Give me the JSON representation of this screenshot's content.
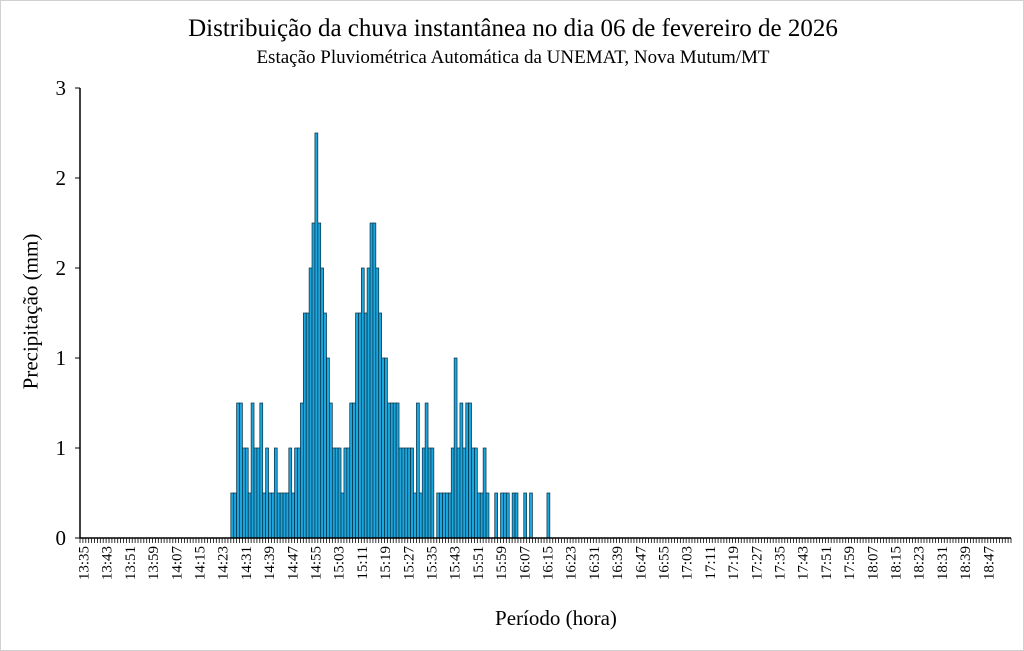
{
  "chart_data": {
    "type": "bar",
    "title": "Distribuição da chuva instantânea no dia 06 de fevereiro de 2026",
    "subtitle": "Estação Pluviométrica Automática da UNEMAT, Nova Mutum/MT",
    "xlabel": "Período (hora)",
    "ylabel": "Precipitação (mm)",
    "ylim": [
      0,
      3
    ],
    "y_ticks": [
      0,
      0.6,
      1.2,
      1.8,
      2.4,
      3.0
    ],
    "y_tick_labels": [
      "0",
      "1",
      "1",
      "2",
      "2",
      "3"
    ],
    "x_start": "13:35",
    "x_interval_minutes": 1,
    "x_tick_labels": [
      "13:35",
      "13:43",
      "13:51",
      "13:59",
      "14:07",
      "14:15",
      "14:23",
      "14:31",
      "14:39",
      "14:47",
      "14:55",
      "15:03",
      "15:11",
      "15:19",
      "15:27",
      "15:35",
      "15:43",
      "15:51",
      "15:59",
      "16:07",
      "16:15",
      "16:23",
      "16:31",
      "16:39",
      "16:47",
      "16:55",
      "17:03",
      "17:11",
      "17:19",
      "17:27",
      "17:35",
      "17:43",
      "17:51",
      "17:59",
      "18:07",
      "18:15",
      "18:23",
      "18:31",
      "18:39",
      "18:47"
    ],
    "grid": false,
    "legend": "none",
    "bar_color": "#1ba6de",
    "bar_edge_color": "#0b2f40",
    "values": [
      0,
      0,
      0,
      0,
      0,
      0,
      0,
      0,
      0,
      0,
      0,
      0,
      0,
      0,
      0,
      0,
      0,
      0,
      0,
      0,
      0,
      0,
      0,
      0,
      0,
      0,
      0,
      0,
      0,
      0,
      0,
      0,
      0,
      0,
      0,
      0,
      0,
      0,
      0,
      0,
      0,
      0,
      0,
      0,
      0,
      0,
      0,
      0,
      0,
      0,
      0,
      0,
      0.3,
      0.3,
      0.9,
      0.9,
      0.6,
      0.6,
      0.3,
      0.9,
      0.6,
      0.6,
      0.9,
      0.3,
      0.6,
      0.3,
      0.3,
      0.6,
      0.3,
      0.3,
      0.3,
      0.3,
      0.6,
      0.3,
      0.6,
      0.6,
      0.9,
      1.5,
      1.5,
      1.8,
      2.1,
      2.7,
      2.1,
      1.8,
      1.5,
      1.2,
      0.9,
      0.6,
      0.6,
      0.6,
      0.3,
      0.6,
      0.6,
      0.9,
      0.9,
      1.5,
      1.5,
      1.8,
      1.5,
      1.8,
      2.1,
      2.1,
      1.8,
      1.5,
      1.2,
      1.2,
      0.9,
      0.9,
      0.9,
      0.9,
      0.6,
      0.6,
      0.6,
      0.6,
      0.6,
      0.3,
      0.9,
      0.3,
      0.6,
      0.9,
      0.6,
      0.6,
      0,
      0.3,
      0.3,
      0.3,
      0.3,
      0.3,
      0.6,
      1.2,
      0.6,
      0.9,
      0.6,
      0.9,
      0.9,
      0.6,
      0.6,
      0.3,
      0.3,
      0.6,
      0.3,
      0,
      0,
      0.3,
      0,
      0.3,
      0.3,
      0.3,
      0,
      0.3,
      0.3,
      0,
      0,
      0.3,
      0,
      0.3,
      0,
      0,
      0,
      0,
      0,
      0.3,
      0,
      0,
      0,
      0,
      0,
      0,
      0,
      0,
      0,
      0,
      0,
      0,
      0,
      0,
      0,
      0,
      0,
      0,
      0,
      0,
      0,
      0,
      0,
      0,
      0,
      0,
      0,
      0,
      0,
      0,
      0,
      0,
      0,
      0,
      0,
      0,
      0,
      0,
      0,
      0,
      0,
      0,
      0,
      0,
      0,
      0,
      0,
      0,
      0,
      0,
      0,
      0,
      0,
      0,
      0,
      0,
      0,
      0,
      0,
      0,
      0,
      0,
      0,
      0,
      0,
      0,
      0,
      0,
      0,
      0,
      0,
      0,
      0,
      0,
      0,
      0,
      0,
      0,
      0,
      0,
      0,
      0,
      0,
      0,
      0,
      0,
      0,
      0,
      0,
      0,
      0,
      0,
      0,
      0,
      0,
      0,
      0,
      0,
      0,
      0,
      0,
      0,
      0,
      0,
      0,
      0,
      0,
      0,
      0,
      0,
      0,
      0,
      0,
      0,
      0,
      0,
      0,
      0,
      0,
      0,
      0,
      0,
      0,
      0,
      0,
      0,
      0,
      0,
      0,
      0,
      0,
      0,
      0,
      0,
      0,
      0,
      0,
      0,
      0,
      0,
      0,
      0,
      0,
      0,
      0,
      0,
      0,
      0,
      0,
      0,
      0,
      0,
      0,
      0,
      0,
      0,
      0,
      0,
      0
    ]
  }
}
